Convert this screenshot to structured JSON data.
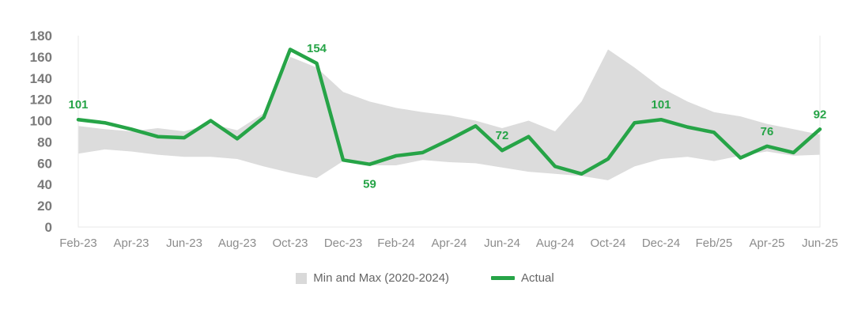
{
  "chart_data": {
    "type": "line",
    "title": "",
    "x": [
      "Feb-23",
      "Mar-23",
      "Apr-23",
      "May-23",
      "Jun-23",
      "Jul-23",
      "Aug-23",
      "Sep-23",
      "Oct-23",
      "Nov-23",
      "Dec-23",
      "Jan-24",
      "Feb-24",
      "Mar-24",
      "Apr-24",
      "May-24",
      "Jun-24",
      "Jul-24",
      "Aug-24",
      "Sep-24",
      "Oct-24",
      "Nov-24",
      "Dec-24",
      "Jan-25",
      "Feb-25",
      "Mar-25",
      "Apr-25",
      "May-25",
      "Jun-25"
    ],
    "x_tick_labels": [
      "Feb-23",
      "Apr-23",
      "Jun-23",
      "Aug-23",
      "Oct-23",
      "Dec-23",
      "Feb-24",
      "Apr-24",
      "Jun-24",
      "Aug-24",
      "Oct-24",
      "Dec-24",
      "Feb/25",
      "Apr-25",
      "Jun-25"
    ],
    "y_ticks": [
      0,
      20,
      40,
      60,
      80,
      100,
      120,
      140,
      160,
      180
    ],
    "ylim": [
      0,
      180
    ],
    "grid": false,
    "legend_position": "bottom",
    "series": [
      {
        "name": "Min and Max (2020-2024)",
        "type": "band",
        "max": [
          95,
          92,
          90,
          93,
          90,
          97,
          91,
          107,
          160,
          150,
          127,
          118,
          112,
          108,
          105,
          100,
          93,
          100,
          90,
          118,
          167,
          150,
          131,
          118,
          108,
          104,
          97,
          92,
          87
        ],
        "min": [
          69,
          73,
          71,
          68,
          66,
          66,
          64,
          57,
          51,
          46,
          62,
          58,
          58,
          63,
          61,
          60,
          56,
          52,
          50,
          48,
          44,
          57,
          64,
          66,
          62,
          67,
          71,
          67,
          68
        ]
      },
      {
        "name": "Actual",
        "type": "line",
        "values": [
          101,
          98,
          92,
          85,
          84,
          100,
          83,
          103,
          167,
          154,
          63,
          59,
          67,
          70,
          82,
          95,
          72,
          85,
          57,
          50,
          64,
          98,
          101,
          94,
          89,
          65,
          76,
          70,
          92
        ]
      }
    ],
    "data_labels": [
      {
        "index": 0,
        "text": "101",
        "position": "above"
      },
      {
        "index": 9,
        "text": "154",
        "position": "above"
      },
      {
        "index": 11,
        "text": "59",
        "position": "below"
      },
      {
        "index": 16,
        "text": "72",
        "position": "above"
      },
      {
        "index": 22,
        "text": "101",
        "position": "above"
      },
      {
        "index": 26,
        "text": "76",
        "position": "above"
      },
      {
        "index": 28,
        "text": "92",
        "position": "above"
      }
    ]
  },
  "legend": {
    "band_label": "Min and Max (2020-2024)",
    "actual_label": "Actual"
  },
  "colors": {
    "actual_line": "#26a447",
    "band_fill": "#dcdcdc",
    "legend_band_swatch": "#d9d9d9",
    "data_label_text": "#26a447",
    "y_tick_text": "#7a7a7a",
    "x_tick_text": "#8c8c8c",
    "plot_border": "#e8e8e8",
    "background": "#ffffff"
  }
}
